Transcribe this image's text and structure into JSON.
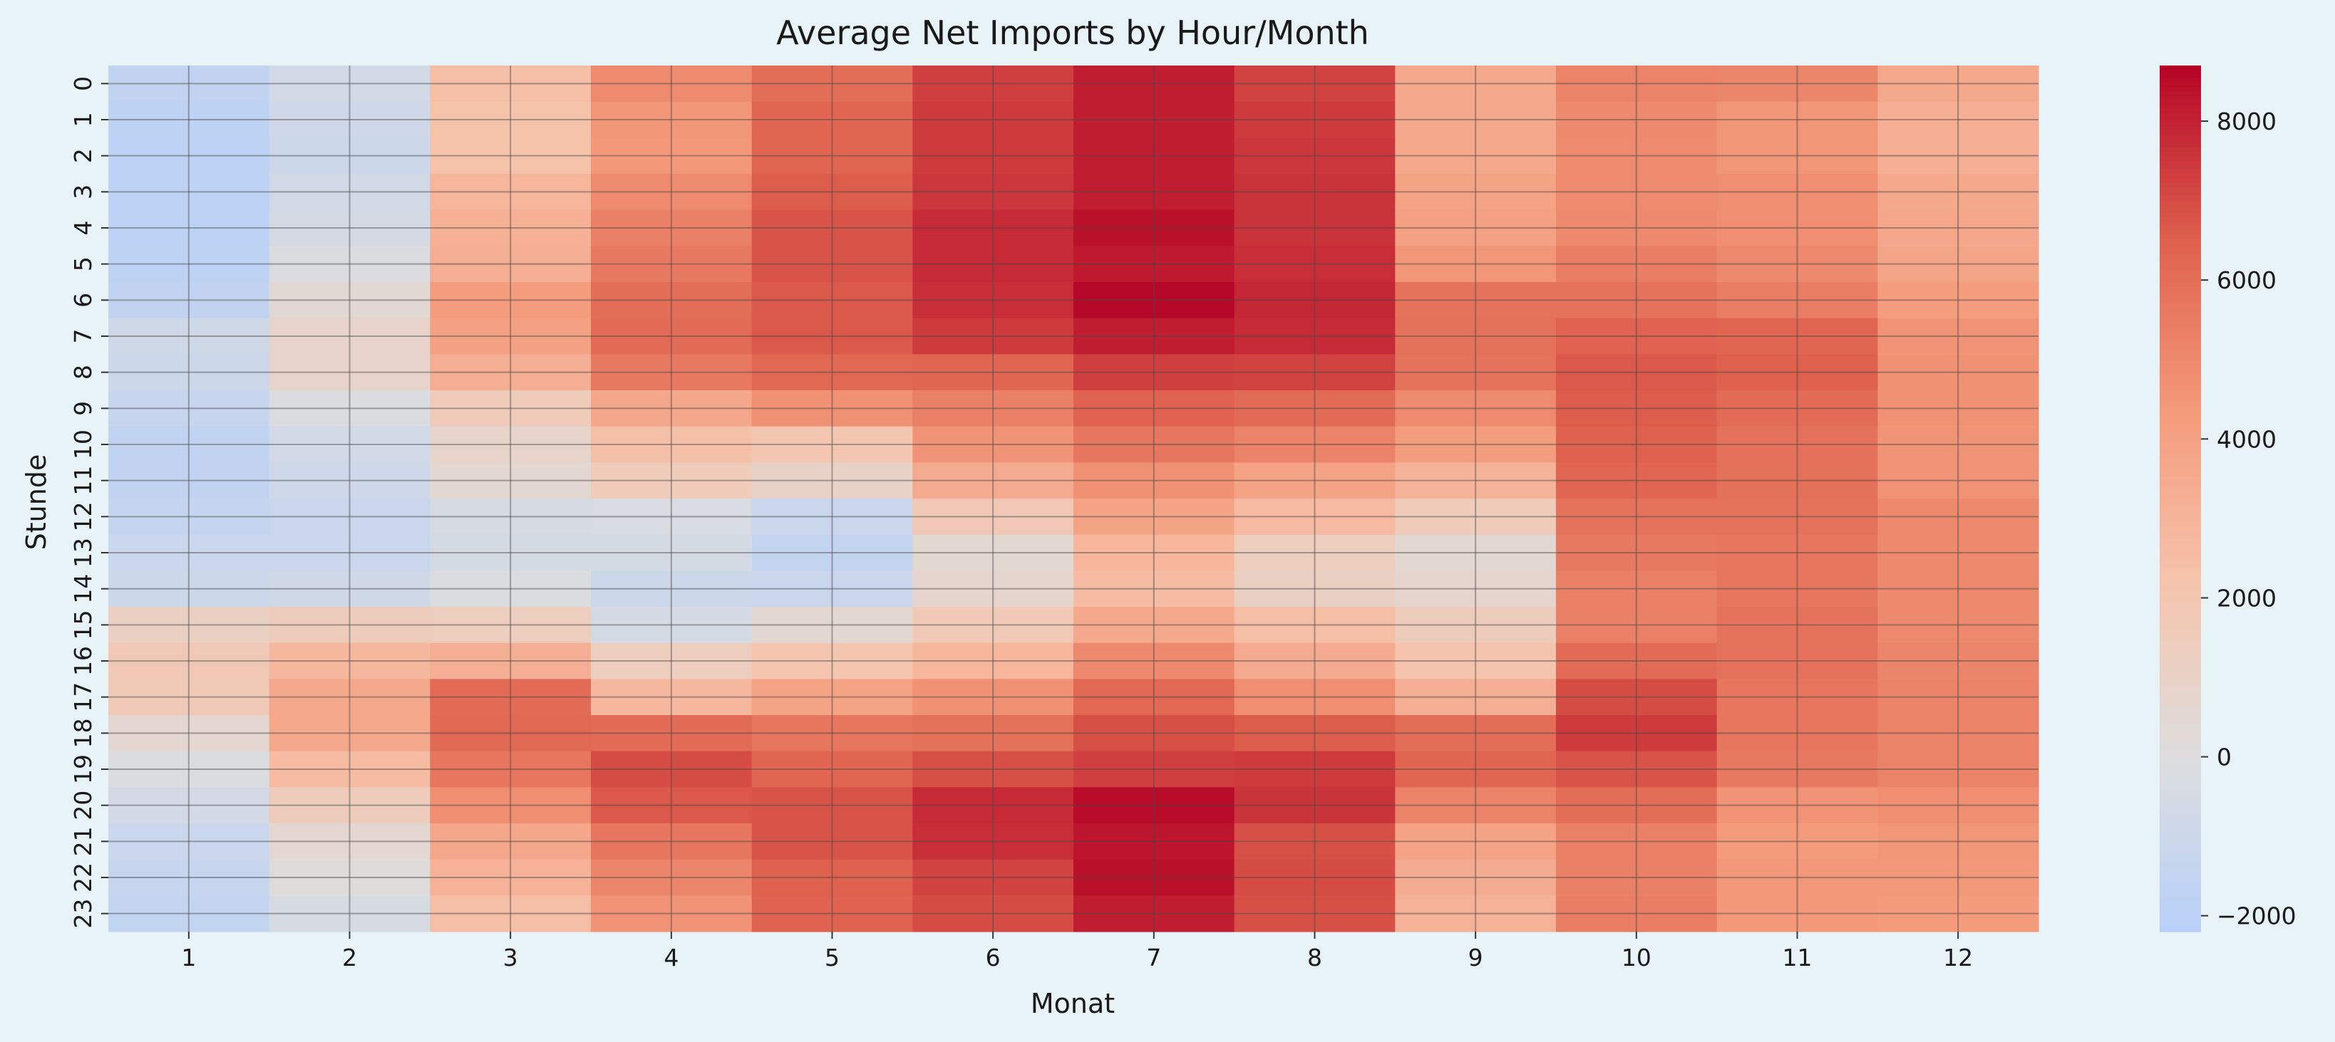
{
  "chart_data": {
    "type": "heatmap",
    "title": "Average Net Imports by Hour/Month",
    "xlabel": "Monat",
    "ylabel": "Stunde",
    "x_categories": [
      "1",
      "2",
      "3",
      "4",
      "5",
      "6",
      "7",
      "8",
      "9",
      "10",
      "11",
      "12"
    ],
    "y_categories": [
      "0",
      "1",
      "2",
      "3",
      "4",
      "5",
      "6",
      "7",
      "8",
      "9",
      "10",
      "11",
      "12",
      "13",
      "14",
      "15",
      "16",
      "17",
      "18",
      "19",
      "20",
      "21",
      "22",
      "23"
    ],
    "values": [
      [
        -1600,
        -700,
        2500,
        4900,
        6000,
        7300,
        8100,
        7200,
        3600,
        5200,
        5100,
        3600
      ],
      [
        -1800,
        -900,
        2300,
        4500,
        6300,
        7400,
        8100,
        7400,
        3600,
        5000,
        4500,
        3300
      ],
      [
        -1900,
        -1000,
        2300,
        4400,
        6300,
        7400,
        8100,
        7500,
        3600,
        4900,
        4500,
        3300
      ],
      [
        -1900,
        -700,
        2900,
        4900,
        6600,
        7500,
        8100,
        7600,
        3900,
        4900,
        4800,
        3600
      ],
      [
        -1900,
        -500,
        3200,
        5300,
        6800,
        7800,
        8400,
        7600,
        4000,
        5000,
        4800,
        3700
      ],
      [
        -1800,
        -200,
        3300,
        5600,
        6800,
        7800,
        8200,
        7700,
        4500,
        5400,
        5000,
        3800
      ],
      [
        -1600,
        400,
        4200,
        6000,
        6700,
        7700,
        8600,
        7900,
        5800,
        5800,
        5400,
        4200
      ],
      [
        -800,
        900,
        4000,
        6100,
        6700,
        7400,
        8100,
        7800,
        5900,
        6400,
        6300,
        4600
      ],
      [
        -1000,
        900,
        3300,
        5600,
        6200,
        6300,
        7300,
        7200,
        5800,
        6700,
        6500,
        4700
      ],
      [
        -1300,
        -200,
        1600,
        3700,
        4700,
        5300,
        6400,
        6100,
        4900,
        6600,
        6100,
        4700
      ],
      [
        -1600,
        -700,
        800,
        2400,
        2000,
        4600,
        5700,
        5200,
        4200,
        6500,
        5900,
        4600
      ],
      [
        -1600,
        -900,
        500,
        1600,
        1000,
        3500,
        4700,
        3900,
        3000,
        6300,
        5900,
        4600
      ],
      [
        -1400,
        -1100,
        -400,
        -300,
        -1100,
        1800,
        3900,
        2700,
        1600,
        5800,
        5800,
        5000
      ],
      [
        -1200,
        -1200,
        -500,
        -500,
        -1500,
        500,
        2900,
        1400,
        500,
        5600,
        5700,
        5000
      ],
      [
        -1000,
        -800,
        -100,
        -1000,
        -1200,
        700,
        2600,
        1200,
        700,
        5300,
        5700,
        5000
      ],
      [
        1200,
        1500,
        1400,
        -500,
        500,
        1700,
        3600,
        2500,
        1500,
        5300,
        5800,
        5000
      ],
      [
        1800,
        2800,
        3300,
        1400,
        2100,
        2900,
        5000,
        3500,
        2200,
        6100,
        5800,
        5100
      ],
      [
        1700,
        3600,
        6100,
        2800,
        3900,
        4700,
        6200,
        4800,
        3300,
        7000,
        5700,
        5200
      ],
      [
        600,
        3600,
        6200,
        6100,
        5700,
        5900,
        6900,
        6600,
        6000,
        7400,
        5700,
        5200
      ],
      [
        -200,
        2600,
        5700,
        7000,
        6300,
        6900,
        7300,
        7400,
        6300,
        6800,
        5600,
        5200
      ],
      [
        -600,
        1500,
        4800,
        6700,
        6800,
        7800,
        8500,
        7600,
        5200,
        6000,
        4600,
        4800
      ],
      [
        -1100,
        600,
        3700,
        5700,
        6800,
        7700,
        8300,
        6900,
        3900,
        5300,
        4300,
        4500
      ],
      [
        -1300,
        100,
        3100,
        5100,
        6500,
        7200,
        8400,
        7000,
        3400,
        5300,
        4400,
        4400
      ],
      [
        -1500,
        -400,
        2500,
        4600,
        6400,
        7000,
        8100,
        6900,
        3100,
        5400,
        4400,
        4300
      ]
    ],
    "colorbar": {
      "min": -2200,
      "max": 8700,
      "ticks": [
        -2000,
        0,
        2000,
        4000,
        6000,
        8000
      ],
      "tick_labels": [
        "−2000",
        "0",
        "2000",
        "4000",
        "6000",
        "8000"
      ],
      "colormap": "coolwarm"
    },
    "grid": true
  }
}
